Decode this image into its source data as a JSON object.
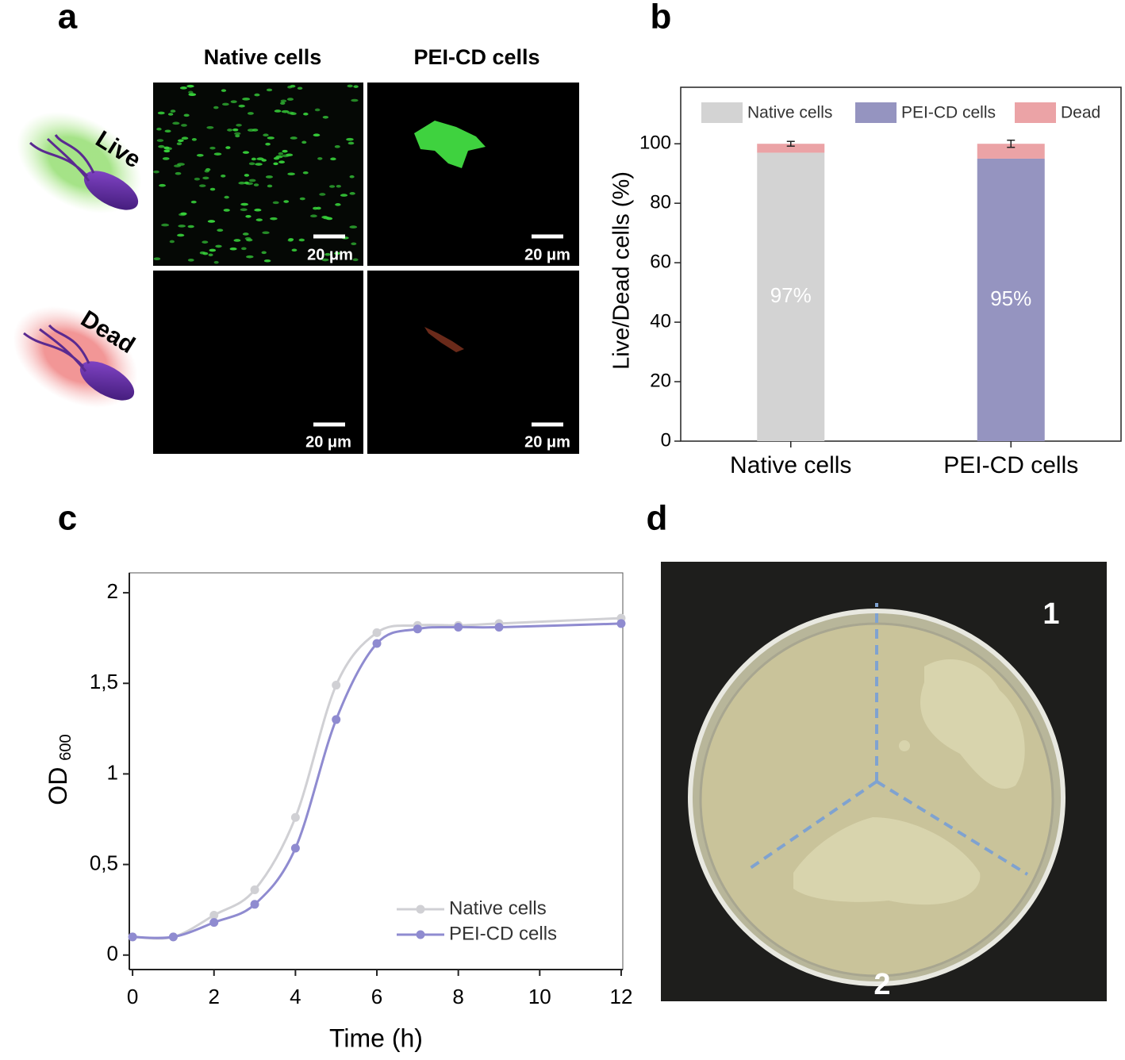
{
  "panel_labels": [
    "a",
    "b",
    "c",
    "d"
  ],
  "microscopy": {
    "columns": [
      "Native cells",
      "PEI-CD cells"
    ],
    "rows": [
      "Live",
      "Dead"
    ],
    "scale_bar": "20 μm"
  },
  "plate": {
    "sectors": [
      "1",
      "2"
    ]
  },
  "chart_data": [
    {
      "type": "stacked-bar",
      "ylabel": "Live/Dead cells (%)",
      "categories": [
        "Native cells",
        "PEI-CD cells"
      ],
      "series": [
        {
          "name": "Native cells",
          "color": "#d3d3d3",
          "values": [
            97,
            null
          ],
          "value_labels": [
            "97%",
            null
          ]
        },
        {
          "name": "PEI-CD cells",
          "color": "#9594c0",
          "values": [
            null,
            95
          ],
          "value_labels": [
            null,
            "95%"
          ]
        },
        {
          "name": "Dead",
          "color": "#eba3a6",
          "values": [
            3,
            5
          ],
          "errors": [
            0.8,
            1.2
          ]
        }
      ],
      "ylim": [
        0,
        119
      ],
      "yticks": [
        0,
        20,
        40,
        60,
        80,
        100
      ],
      "legend": "top"
    },
    {
      "type": "line",
      "xlabel": "Time (h)",
      "ylabel": "OD",
      "ylabel_sub": "600",
      "x": [
        0,
        1,
        2,
        3,
        4,
        5,
        6,
        7,
        8,
        9,
        12
      ],
      "series": [
        {
          "name": "Native cells",
          "color": "#d0d0d4",
          "values": [
            0.1,
            0.1,
            0.22,
            0.36,
            0.76,
            1.49,
            1.78,
            1.82,
            1.82,
            1.83,
            1.86
          ]
        },
        {
          "name": "PEI-CD cells",
          "color": "#8f8bd0",
          "values": [
            0.1,
            0.1,
            0.18,
            0.28,
            0.59,
            1.3,
            1.72,
            1.8,
            1.81,
            1.81,
            1.83
          ]
        }
      ],
      "xlim": [
        -0.08,
        12.04
      ],
      "ylim": [
        -0.08,
        2.11
      ],
      "xticks": [
        0,
        2,
        4,
        6,
        8,
        10,
        12
      ],
      "yticks": [
        0,
        {
          "value": 0.5,
          "label": "0,5"
        },
        1,
        {
          "value": 1.5,
          "label": "1,5"
        },
        2
      ],
      "legend": "lower right"
    }
  ]
}
